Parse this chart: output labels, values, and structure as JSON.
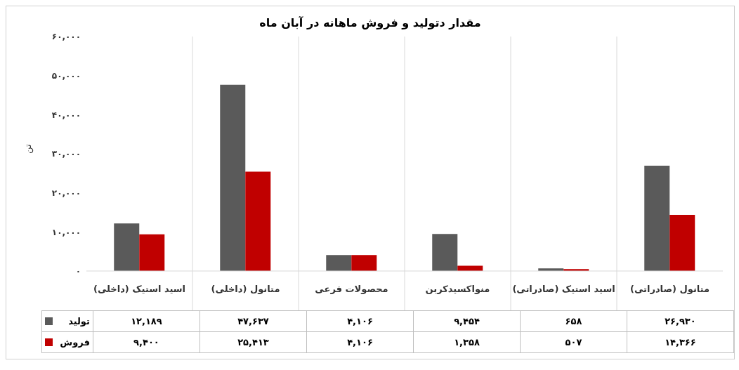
{
  "chart_data": {
    "type": "bar",
    "title": "مقدار دتولید و فروش ماهانه در آبان ماه",
    "ylabel": "تن",
    "categories": [
      "اسید استیک (داخلی)",
      "متانول (داخلی)",
      "محصولات فرعی",
      "منواکسیدکربن",
      "اسید استیک (صادراتی)",
      "متانول (صادراتی)"
    ],
    "series": [
      {
        "name": "تولید",
        "color": "#5a5a5a",
        "values": [
          12189,
          47637,
          4106,
          9454,
          658,
          26930
        ],
        "value_labels": [
          "۱۲,۱۸۹",
          "۴۷,۶۳۷",
          "۴,۱۰۶",
          "۹,۴۵۴",
          "۶۵۸",
          "۲۶,۹۳۰"
        ]
      },
      {
        "name": "فروش",
        "color": "#c00000",
        "values": [
          9400,
          25413,
          4106,
          1358,
          507,
          14366
        ],
        "value_labels": [
          "۹,۴۰۰",
          "۲۵,۴۱۳",
          "۴,۱۰۶",
          "۱,۳۵۸",
          "۵۰۷",
          "۱۴,۳۶۶"
        ]
      }
    ],
    "ylim": [
      0,
      60000
    ],
    "yticks": [
      {
        "value": 0,
        "label": "۰"
      },
      {
        "value": 10000,
        "label": "۱۰,۰۰۰"
      },
      {
        "value": 20000,
        "label": "۲۰,۰۰۰"
      },
      {
        "value": 30000,
        "label": "۳۰,۰۰۰"
      },
      {
        "value": 40000,
        "label": "۴۰,۰۰۰"
      },
      {
        "value": 50000,
        "label": "۵۰,۰۰۰"
      },
      {
        "value": 60000,
        "label": "۶۰,۰۰۰"
      }
    ],
    "grid": false,
    "legend": "bottom"
  }
}
